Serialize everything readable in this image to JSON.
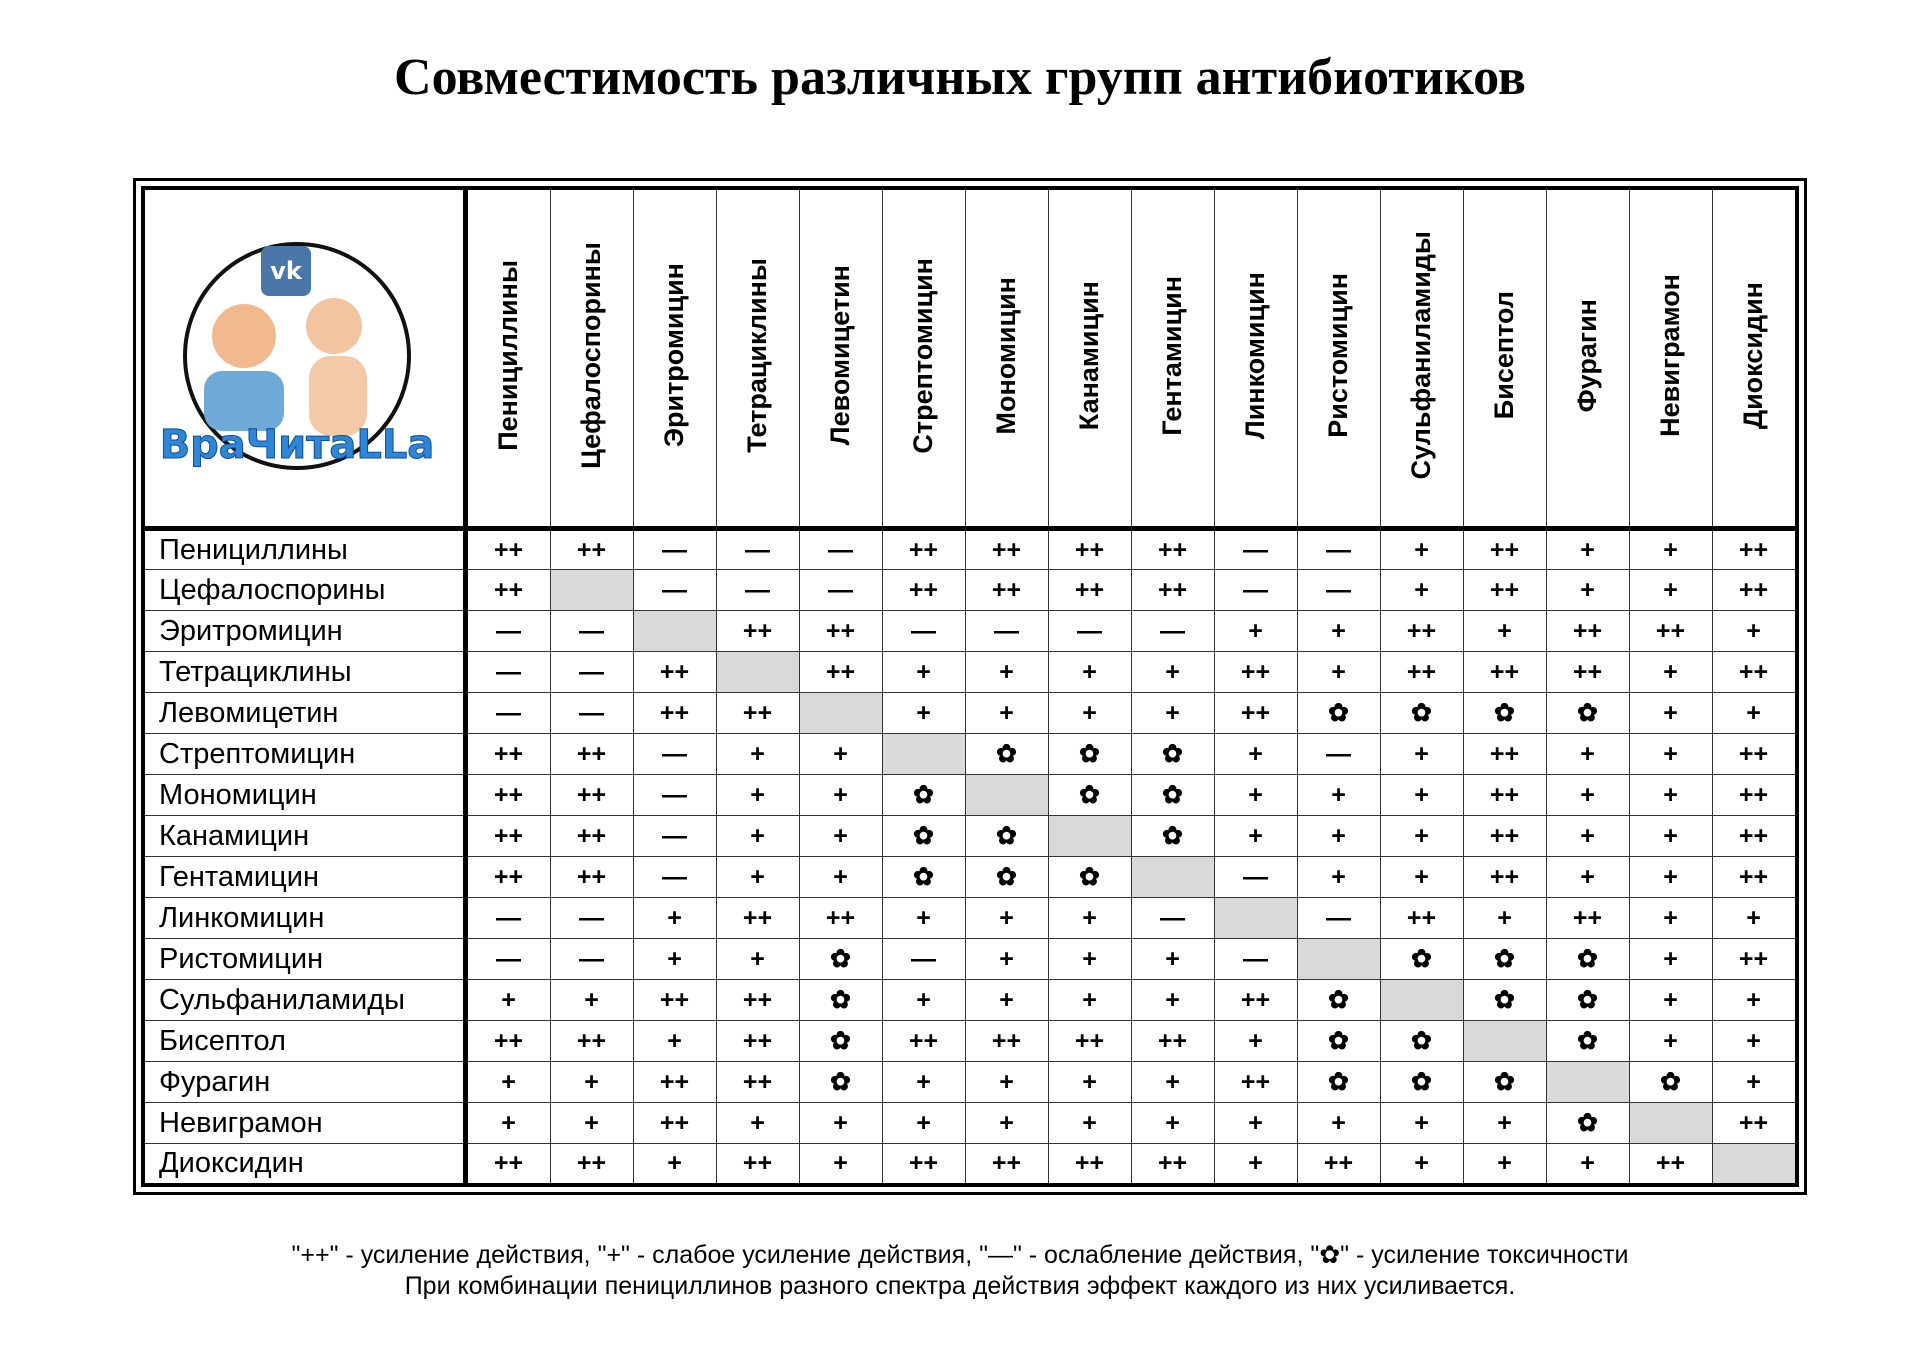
{
  "title": "Совместимость различных групп антибиотиков",
  "logo": {
    "badge": "vk",
    "text": "ВраЧитаLLa"
  },
  "table": {
    "columns": [
      "Пенициллины",
      "Цефалоспорины",
      "Эритромицин",
      "Тетрациклины",
      "Левомицетин",
      "Стрептомицин",
      "Мономицин",
      "Канамицин",
      "Гентамицин",
      "Линкомицин",
      "Ристомицин",
      "Сульфаниламиды",
      "Бисептол",
      "Фурагин",
      "Невиграмон",
      "Диоксидин"
    ],
    "rows": [
      {
        "label": "Пенициллины",
        "cells": [
          "++",
          "++",
          "—",
          "—",
          "—",
          "++",
          "++",
          "++",
          "++",
          "—",
          "—",
          "+",
          "++",
          "+",
          "+",
          "++"
        ]
      },
      {
        "label": "Цефалоспорины",
        "cells": [
          "++",
          null,
          "—",
          "—",
          "—",
          "++",
          "++",
          "++",
          "++",
          "—",
          "—",
          "+",
          "++",
          "+",
          "+",
          "++"
        ]
      },
      {
        "label": "Эритромицин",
        "cells": [
          "—",
          "—",
          null,
          "++",
          "++",
          "—",
          "—",
          "—",
          "—",
          "+",
          "+",
          "++",
          "+",
          "++",
          "++",
          "+"
        ]
      },
      {
        "label": "Тетрациклины",
        "cells": [
          "—",
          "—",
          "++",
          null,
          "++",
          "+",
          "+",
          "+",
          "+",
          "++",
          "+",
          "++",
          "++",
          "++",
          "+",
          "++"
        ]
      },
      {
        "label": "Левомицетин",
        "cells": [
          "—",
          "—",
          "++",
          "++",
          null,
          "+",
          "+",
          "+",
          "+",
          "++",
          "✿",
          "✿",
          "✿",
          "✿",
          "+",
          "+"
        ]
      },
      {
        "label": "Стрептомицин",
        "cells": [
          "++",
          "++",
          "—",
          "+",
          "+",
          null,
          "✿",
          "✿",
          "✿",
          "+",
          "—",
          "+",
          "++",
          "+",
          "+",
          "++"
        ]
      },
      {
        "label": "Мономицин",
        "cells": [
          "++",
          "++",
          "—",
          "+",
          "+",
          "✿",
          null,
          "✿",
          "✿",
          "+",
          "+",
          "+",
          "++",
          "+",
          "+",
          "++"
        ]
      },
      {
        "label": "Канамицин",
        "cells": [
          "++",
          "++",
          "—",
          "+",
          "+",
          "✿",
          "✿",
          null,
          "✿",
          "+",
          "+",
          "+",
          "++",
          "+",
          "+",
          "++"
        ]
      },
      {
        "label": "Гентамицин",
        "cells": [
          "++",
          "++",
          "—",
          "+",
          "+",
          "✿",
          "✿",
          "✿",
          null,
          "—",
          "+",
          "+",
          "++",
          "+",
          "+",
          "++"
        ]
      },
      {
        "label": "Линкомицин",
        "cells": [
          "—",
          "—",
          "+",
          "++",
          "++",
          "+",
          "+",
          "+",
          "—",
          null,
          "—",
          "++",
          "+",
          "++",
          "+",
          "+"
        ]
      },
      {
        "label": "Ристомицин",
        "cells": [
          "—",
          "—",
          "+",
          "+",
          "✿",
          "—",
          "+",
          "+",
          "+",
          "—",
          null,
          "✿",
          "✿",
          "✿",
          "+",
          "++"
        ]
      },
      {
        "label": "Сульфаниламиды",
        "cells": [
          "+",
          "+",
          "++",
          "++",
          "✿",
          "+",
          "+",
          "+",
          "+",
          "++",
          "✿",
          null,
          "✿",
          "✿",
          "+",
          "+"
        ]
      },
      {
        "label": "Бисептол",
        "cells": [
          "++",
          "++",
          "+",
          "++",
          "✿",
          "++",
          "++",
          "++",
          "++",
          "+",
          "✿",
          "✿",
          null,
          "✿",
          "+",
          "+"
        ]
      },
      {
        "label": "Фурагин",
        "cells": [
          "+",
          "+",
          "++",
          "++",
          "✿",
          "+",
          "+",
          "+",
          "+",
          "++",
          "✿",
          "✿",
          "✿",
          null,
          "✿",
          "+"
        ]
      },
      {
        "label": "Невиграмон",
        "cells": [
          "+",
          "+",
          "++",
          "+",
          "+",
          "+",
          "+",
          "+",
          "+",
          "+",
          "+",
          "+",
          "+",
          "✿",
          null,
          "++"
        ]
      },
      {
        "label": "Диоксидин",
        "cells": [
          "++",
          "++",
          "+",
          "++",
          "+",
          "++",
          "++",
          "++",
          "++",
          "+",
          "++",
          "+",
          "+",
          "+",
          "++",
          null
        ]
      }
    ]
  },
  "legend": [
    "\"++\" - усиление действия, \"+\" - слабое усиление действия, \"—\" - ослабление действия, \"✿\" - усиление токсичности",
    "При комбинации пенициллинов разного спектра действия эффект каждого из них усиливается."
  ]
}
